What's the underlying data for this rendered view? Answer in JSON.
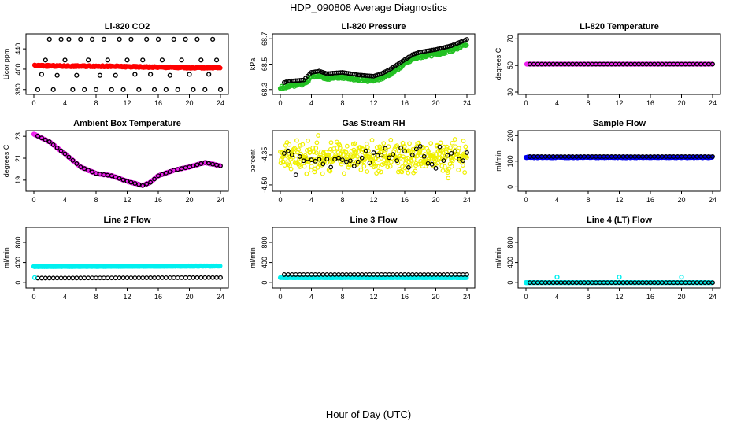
{
  "title": "HDP_090808  Average Diagnostics",
  "footer_xlabel": "Hour of Day (UTC)",
  "colors": {
    "black": "#000000",
    "red": "#ff0000",
    "green": "#22c022",
    "magenta": "#ee22ee",
    "yellow": "#f0f000",
    "blue": "#0000ee",
    "cyan": "#00f0f0"
  },
  "chart_data": [
    {
      "type": "scatter",
      "title": "Li-820 CO2",
      "ylabel": "Licor ppm",
      "xlim": [
        0,
        24
      ],
      "ylim": [
        355,
        465
      ],
      "xticks": [
        "0",
        "4",
        "8",
        "12",
        "16",
        "20",
        "24"
      ],
      "yticks": [
        {
          "v": 360,
          "label": "360"
        },
        {
          "v": 400,
          "label": "400"
        },
        {
          "v": 440,
          "label": "440"
        }
      ],
      "series": [
        {
          "name": "average",
          "color": "red",
          "kind": "line",
          "x0": 0.1,
          "x1": 24,
          "points": [
            [
              0,
              407
            ],
            [
              4,
              406
            ],
            [
              8,
              406
            ],
            [
              12,
              405
            ],
            [
              16,
              404
            ],
            [
              20,
              403
            ],
            [
              24,
              403
            ]
          ],
          "noise": 1.2
        },
        {
          "name": "samples",
          "color": "black",
          "kind": "points",
          "x": [
            0.5,
            1.0,
            1.5,
            2.0,
            2.5,
            3.0,
            3.5,
            4.0,
            4.5,
            5.0,
            5.5,
            6.0,
            6.5,
            7.0,
            7.5,
            8.0,
            8.5,
            9.0,
            9.5,
            10.0,
            10.5,
            11.0,
            11.5,
            12.0,
            12.5,
            13.0,
            13.5,
            14.0,
            14.5,
            15.0,
            15.5,
            16.0,
            16.5,
            17.0,
            17.5,
            18.0,
            18.5,
            19.0,
            19.5,
            20.0,
            20.5,
            21.0,
            21.5,
            22.0,
            22.5,
            23.0,
            23.5,
            24.0
          ],
          "y": [
            360,
            390,
            418,
            459,
            360,
            388,
            459,
            418,
            459,
            360,
            388,
            459,
            360,
            418,
            459,
            360,
            388,
            459,
            418,
            360,
            388,
            459,
            360,
            418,
            459,
            390,
            360,
            418,
            459,
            390,
            360,
            459,
            418,
            360,
            388,
            459,
            360,
            418,
            459,
            390,
            360,
            459,
            418,
            360,
            390,
            459,
            418,
            360
          ]
        }
      ]
    },
    {
      "type": "scatter",
      "title": "Li-820 Pressure",
      "ylabel": "kPa",
      "xlim": [
        0,
        24
      ],
      "ylim": [
        68.28,
        68.72
      ],
      "xticks": [
        "0",
        "4",
        "8",
        "12",
        "16",
        "20",
        "24"
      ],
      "yticks": [
        {
          "v": 68.3,
          "label": "68.3"
        },
        {
          "v": 68.5,
          "label": "68.5"
        },
        {
          "v": 68.7,
          "label": "68.7"
        }
      ],
      "series": [
        {
          "name": "average",
          "color": "green",
          "kind": "line",
          "x0": 0,
          "x1": 24,
          "points": [
            [
              0,
              68.31
            ],
            [
              1,
              68.33
            ],
            [
              3,
              68.34
            ],
            [
              4,
              68.4
            ],
            [
              5,
              68.41
            ],
            [
              6,
              68.39
            ],
            [
              8,
              68.4
            ],
            [
              10,
              68.38
            ],
            [
              12,
              68.37
            ],
            [
              13,
              68.39
            ],
            [
              14,
              68.42
            ],
            [
              16,
              68.5
            ],
            [
              17,
              68.54
            ],
            [
              18,
              68.56
            ],
            [
              20,
              68.58
            ],
            [
              22,
              68.61
            ],
            [
              24,
              68.66
            ]
          ],
          "noise": 0.012
        },
        {
          "name": "samples",
          "color": "black",
          "kind": "curve",
          "offset": 0.035,
          "step": 0.25,
          "x0": 0.5,
          "x1": 24
        }
      ]
    },
    {
      "type": "scatter",
      "title": "Li-820 Temperature",
      "ylabel": "degrees C",
      "xlim": [
        0,
        24
      ],
      "ylim": [
        30,
        72
      ],
      "xticks": [
        "0",
        "4",
        "8",
        "12",
        "16",
        "20",
        "24"
      ],
      "yticks": [
        {
          "v": 30,
          "label": "30"
        },
        {
          "v": 50,
          "label": "50"
        },
        {
          "v": 70,
          "label": "70"
        }
      ],
      "series": [
        {
          "name": "average",
          "color": "magenta",
          "kind": "line",
          "x0": 0.1,
          "x1": 24,
          "points": [
            [
              0,
              51
            ],
            [
              24,
              51
            ]
          ],
          "noise": 0
        },
        {
          "name": "samples",
          "color": "black",
          "kind": "curve",
          "offset": 0,
          "step": 0.5,
          "x0": 0.5,
          "x1": 24
        }
      ]
    },
    {
      "type": "scatter",
      "title": "Ambient Box Temperature",
      "ylabel": "degrees C",
      "xlim": [
        0,
        24
      ],
      "ylim": [
        18.2,
        23.3
      ],
      "xticks": [
        "0",
        "4",
        "8",
        "12",
        "16",
        "20",
        "24"
      ],
      "yticks": [
        {
          "v": 19,
          "label": "19"
        },
        {
          "v": 21,
          "label": "21"
        },
        {
          "v": 23,
          "label": "23"
        }
      ],
      "series": [
        {
          "name": "average",
          "color": "magenta",
          "kind": "line",
          "x0": 0,
          "x1": 24,
          "points": [
            [
              0,
              23.2
            ],
            [
              2,
              22.5
            ],
            [
              4,
              21.4
            ],
            [
              6,
              20.2
            ],
            [
              8,
              19.6
            ],
            [
              10,
              19.4
            ],
            [
              12,
              18.9
            ],
            [
              14,
              18.5
            ],
            [
              15,
              18.8
            ],
            [
              16,
              19.4
            ],
            [
              18,
              19.9
            ],
            [
              20,
              20.2
            ],
            [
              22,
              20.6
            ],
            [
              24,
              20.3
            ]
          ],
          "noise": 0.03
        },
        {
          "name": "samples",
          "color": "black",
          "kind": "curve",
          "offset": 0,
          "step": 0.5,
          "x0": 0.5,
          "x1": 24
        }
      ]
    },
    {
      "type": "scatter",
      "title": "Gas Stream RH",
      "ylabel": "percent",
      "xlim": [
        0,
        24
      ],
      "ylim": [
        -4.52,
        -4.24
      ],
      "xticks": [
        "0",
        "4",
        "8",
        "12",
        "16",
        "20",
        "24"
      ],
      "yticks": [
        {
          "v": -4.5,
          "label": "-4.50"
        },
        {
          "v": -4.35,
          "label": "-4.35"
        }
      ],
      "series": [
        {
          "name": "average",
          "color": "yellow",
          "kind": "cloud",
          "x0": 0,
          "x1": 24,
          "count": 420,
          "center": -4.36,
          "spread": 0.07,
          "seed": 11
        },
        {
          "name": "samples",
          "color": "black",
          "kind": "cloud",
          "x0": 0.5,
          "x1": 24,
          "count": 48,
          "center": -4.37,
          "spread": 0.06,
          "seed": 29
        }
      ]
    },
    {
      "type": "scatter",
      "title": "Sample Flow",
      "ylabel": "ml/min",
      "xlim": [
        0,
        24
      ],
      "ylim": [
        -8,
        210
      ],
      "xticks": [
        "0",
        "4",
        "8",
        "12",
        "16",
        "20",
        "24"
      ],
      "yticks": [
        {
          "v": 0,
          "label": "0"
        },
        {
          "v": 100,
          "label": "100"
        },
        {
          "v": 200,
          "label": "200"
        }
      ],
      "series": [
        {
          "name": "average",
          "color": "blue",
          "kind": "line",
          "x0": 0,
          "x1": 24,
          "points": [
            [
              0,
              115
            ],
            [
              24,
              115
            ]
          ],
          "noise": 1.5
        },
        {
          "name": "samples",
          "color": "black",
          "kind": "curve",
          "offset": 3,
          "step": 0.5,
          "x0": 0.5,
          "x1": 24
        }
      ]
    },
    {
      "type": "scatter",
      "title": "Line 2 Flow",
      "ylabel": "ml/min",
      "xlim": [
        0,
        24
      ],
      "ylim": [
        -60,
        1050
      ],
      "xticks": [
        "0",
        "4",
        "8",
        "12",
        "16",
        "20",
        "24"
      ],
      "yticks": [
        {
          "v": 0,
          "label": "0"
        },
        {
          "v": 400,
          "label": "400"
        },
        {
          "v": 800,
          "label": "800"
        }
      ],
      "series": [
        {
          "name": "average",
          "color": "cyan",
          "kind": "line",
          "x0": 0,
          "x1": 24,
          "points": [
            [
              0,
              320
            ],
            [
              24,
              330
            ]
          ],
          "noise": 3
        },
        {
          "name": "samples",
          "color": "black",
          "kind": "curve",
          "offset": -230,
          "step": 0.5,
          "x0": 0.5,
          "x1": 24
        },
        {
          "name": "start",
          "color": "cyan",
          "kind": "points",
          "x": [
            0.1
          ],
          "y": [
            100
          ]
        }
      ]
    },
    {
      "type": "scatter",
      "title": "Line 3 Flow",
      "ylabel": "ml/min",
      "xlim": [
        0,
        24
      ],
      "ylim": [
        -60,
        1050
      ],
      "xticks": [
        "0",
        "4",
        "8",
        "12",
        "16",
        "20",
        "24"
      ],
      "yticks": [
        {
          "v": 0,
          "label": "0"
        },
        {
          "v": 400,
          "label": "400"
        },
        {
          "v": 800,
          "label": "800"
        }
      ],
      "series": [
        {
          "name": "average",
          "color": "cyan",
          "kind": "line",
          "x0": 0,
          "x1": 24,
          "points": [
            [
              0,
              100
            ],
            [
              24,
              100
            ]
          ],
          "noise": 3
        },
        {
          "name": "samples",
          "color": "black",
          "kind": "curve",
          "offset": 60,
          "step": 0.5,
          "x0": 0.5,
          "x1": 24
        }
      ]
    },
    {
      "type": "scatter",
      "title": "Line 4 (LT) Flow",
      "ylabel": "ml/min",
      "xlim": [
        0,
        24
      ],
      "ylim": [
        -60,
        1050
      ],
      "xticks": [
        "0",
        "4",
        "8",
        "12",
        "16",
        "20",
        "24"
      ],
      "yticks": [
        {
          "v": 0,
          "label": "0"
        },
        {
          "v": 400,
          "label": "400"
        },
        {
          "v": 800,
          "label": "800"
        }
      ],
      "series": [
        {
          "name": "average",
          "color": "cyan",
          "kind": "line",
          "x0": 0,
          "x1": 24,
          "points": [
            [
              0,
              0
            ],
            [
              24,
              0
            ]
          ],
          "noise": 1
        },
        {
          "name": "samples",
          "color": "black",
          "kind": "curve",
          "offset": 0,
          "step": 0.5,
          "x0": 0.5,
          "x1": 24
        },
        {
          "name": "spikes",
          "color": "cyan",
          "kind": "points",
          "x": [
            0,
            4,
            12,
            20
          ],
          "y": [
            0,
            110,
            110,
            110
          ]
        }
      ]
    }
  ]
}
